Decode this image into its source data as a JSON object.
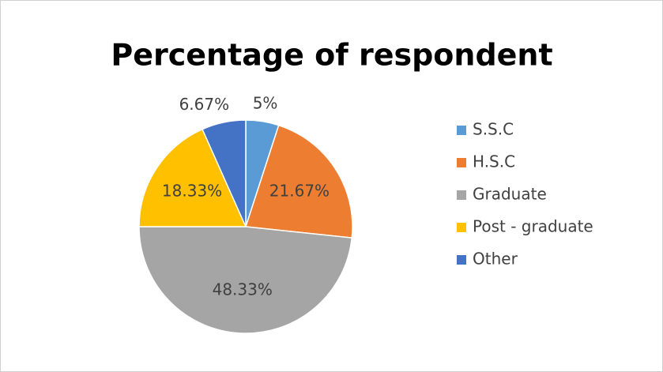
{
  "chart_data": {
    "type": "pie",
    "title": "Percentage of respondent",
    "categories": [
      "S.S.C",
      "H.S.C",
      "Graduate",
      "Post - graduate",
      "Other"
    ],
    "values": [
      5,
      21.67,
      48.33,
      18.33,
      6.67
    ],
    "value_labels": [
      "5%",
      "21.67%",
      "48.33%",
      "18.33%",
      "6.67%"
    ],
    "colors": [
      "#5b9bd5",
      "#ed7d31",
      "#a5a5a5",
      "#ffc000",
      "#4472c4"
    ],
    "legend": "right"
  }
}
